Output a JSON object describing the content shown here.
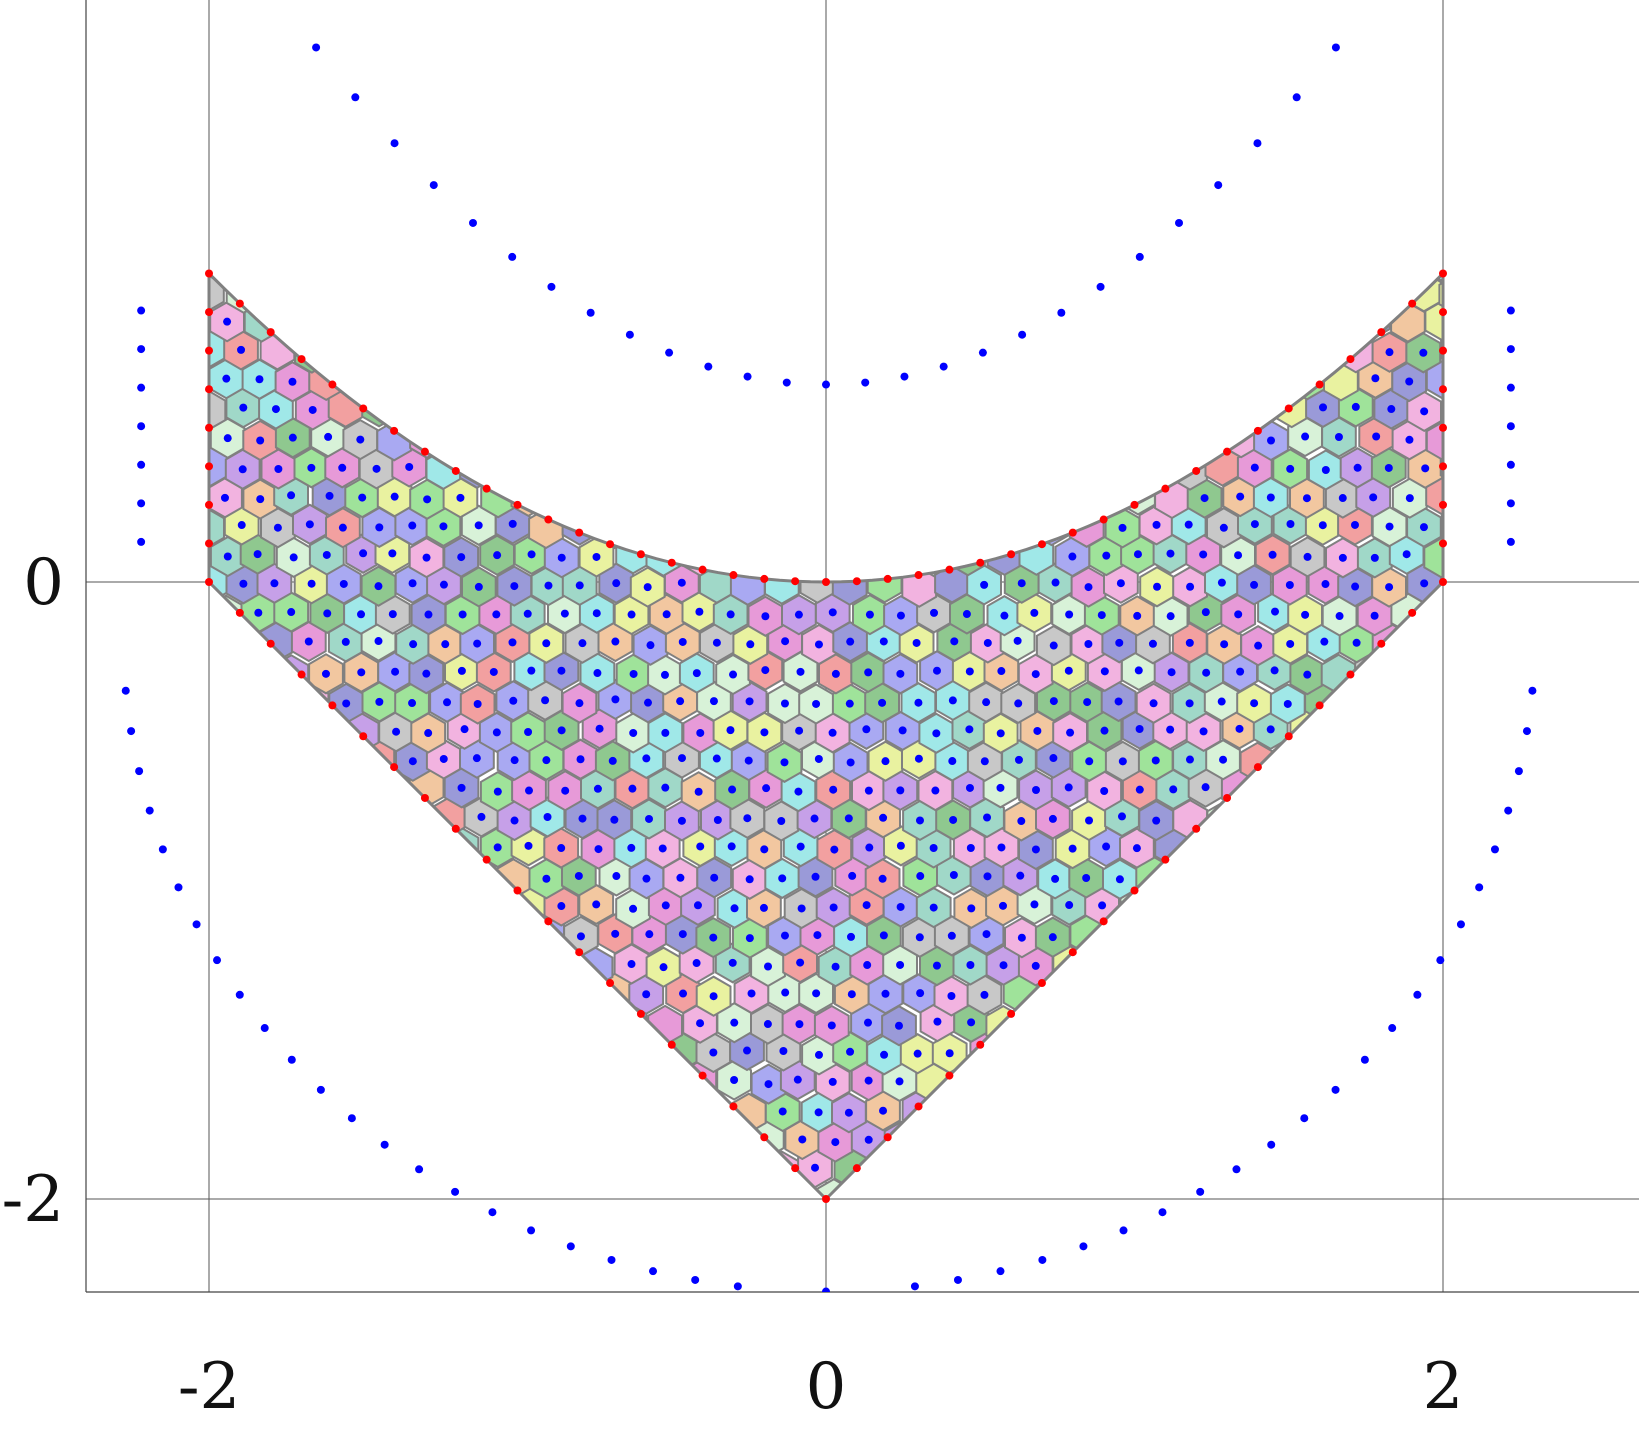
{
  "chart_data": {
    "type": "scatter",
    "title": "",
    "xlabel": "",
    "ylabel": "",
    "xlim": [
      -2.4,
      2.4
    ],
    "ylim": [
      -2.3,
      1.9
    ],
    "x_ticks": [
      -2,
      0,
      2
    ],
    "y_ticks": [
      -2,
      0
    ],
    "x_tick_labels": [
      "-2",
      "0",
      "2"
    ],
    "y_tick_labels": [
      "-2",
      "0"
    ],
    "grid": true,
    "domain": {
      "description_shape": "region between upper parabola y = x^2/4 and lower V y = |x| - 2, for -2 <= x <= 2",
      "left_edge_x": -2,
      "right_edge_x": 2,
      "top_corner_y": 1,
      "vertex_bottom_y": -2,
      "vertex_top_y": 0,
      "fill_cell_palette": [
        "#e79ad8",
        "#9fe39a",
        "#a9a9f2",
        "#f2a0a0",
        "#a0e8e8",
        "#e9f2a0",
        "#c6a0e8",
        "#8fc88f",
        "#f2c7a0",
        "#9a9ad8",
        "#d8f2d8",
        "#f2b3e0",
        "#c8c8c8",
        "#a0d8c8"
      ],
      "cell_edge_color": "#808080"
    },
    "series": [
      {
        "name": "",
        "role": "boundary",
        "color": "#ff0000",
        "x": [
          -2,
          -1.85,
          -1.7,
          -1.55,
          -1.4,
          -1.25,
          -1.1,
          -0.95,
          -0.8,
          -0.65,
          -0.5,
          -0.35,
          -0.2,
          0,
          0.2,
          0.35,
          0.5,
          0.65,
          0.8,
          0.95,
          1.1,
          1.25,
          1.4,
          1.55,
          1.7,
          1.85,
          2
        ],
        "y": [
          1,
          0.86,
          0.72,
          0.6,
          0.49,
          0.39,
          0.3,
          0.23,
          0.16,
          0.11,
          0.06,
          0.03,
          0.01,
          0,
          0.01,
          0.03,
          0.06,
          0.11,
          0.16,
          0.23,
          0.3,
          0.39,
          0.49,
          0.6,
          0.72,
          0.86,
          1
        ]
      },
      {
        "name": "",
        "role": "exterior",
        "color": "#0000ff",
        "x": [
          -1.78,
          -1.25,
          -1.05,
          -0.8,
          -0.65,
          -0.45,
          -0.2,
          0,
          0.2,
          0.45,
          0.65,
          0.8,
          1.05,
          1.25,
          1.78
        ],
        "y": [
          1.87,
          1.62,
          1.35,
          1.1,
          0.9,
          0.7,
          0.6,
          0.64,
          0.6,
          0.7,
          0.9,
          1.1,
          1.35,
          1.62,
          1.87
        ]
      },
      {
        "name": "",
        "role": "interior",
        "color": "#0000ff",
        "x": [
          -1.5,
          -1.0,
          -0.5,
          0,
          0.5,
          1.0,
          1.5
        ],
        "y": [
          0.3,
          -0.4,
          -0.9,
          -1.5,
          -0.9,
          -0.4,
          0.3
        ]
      }
    ]
  }
}
